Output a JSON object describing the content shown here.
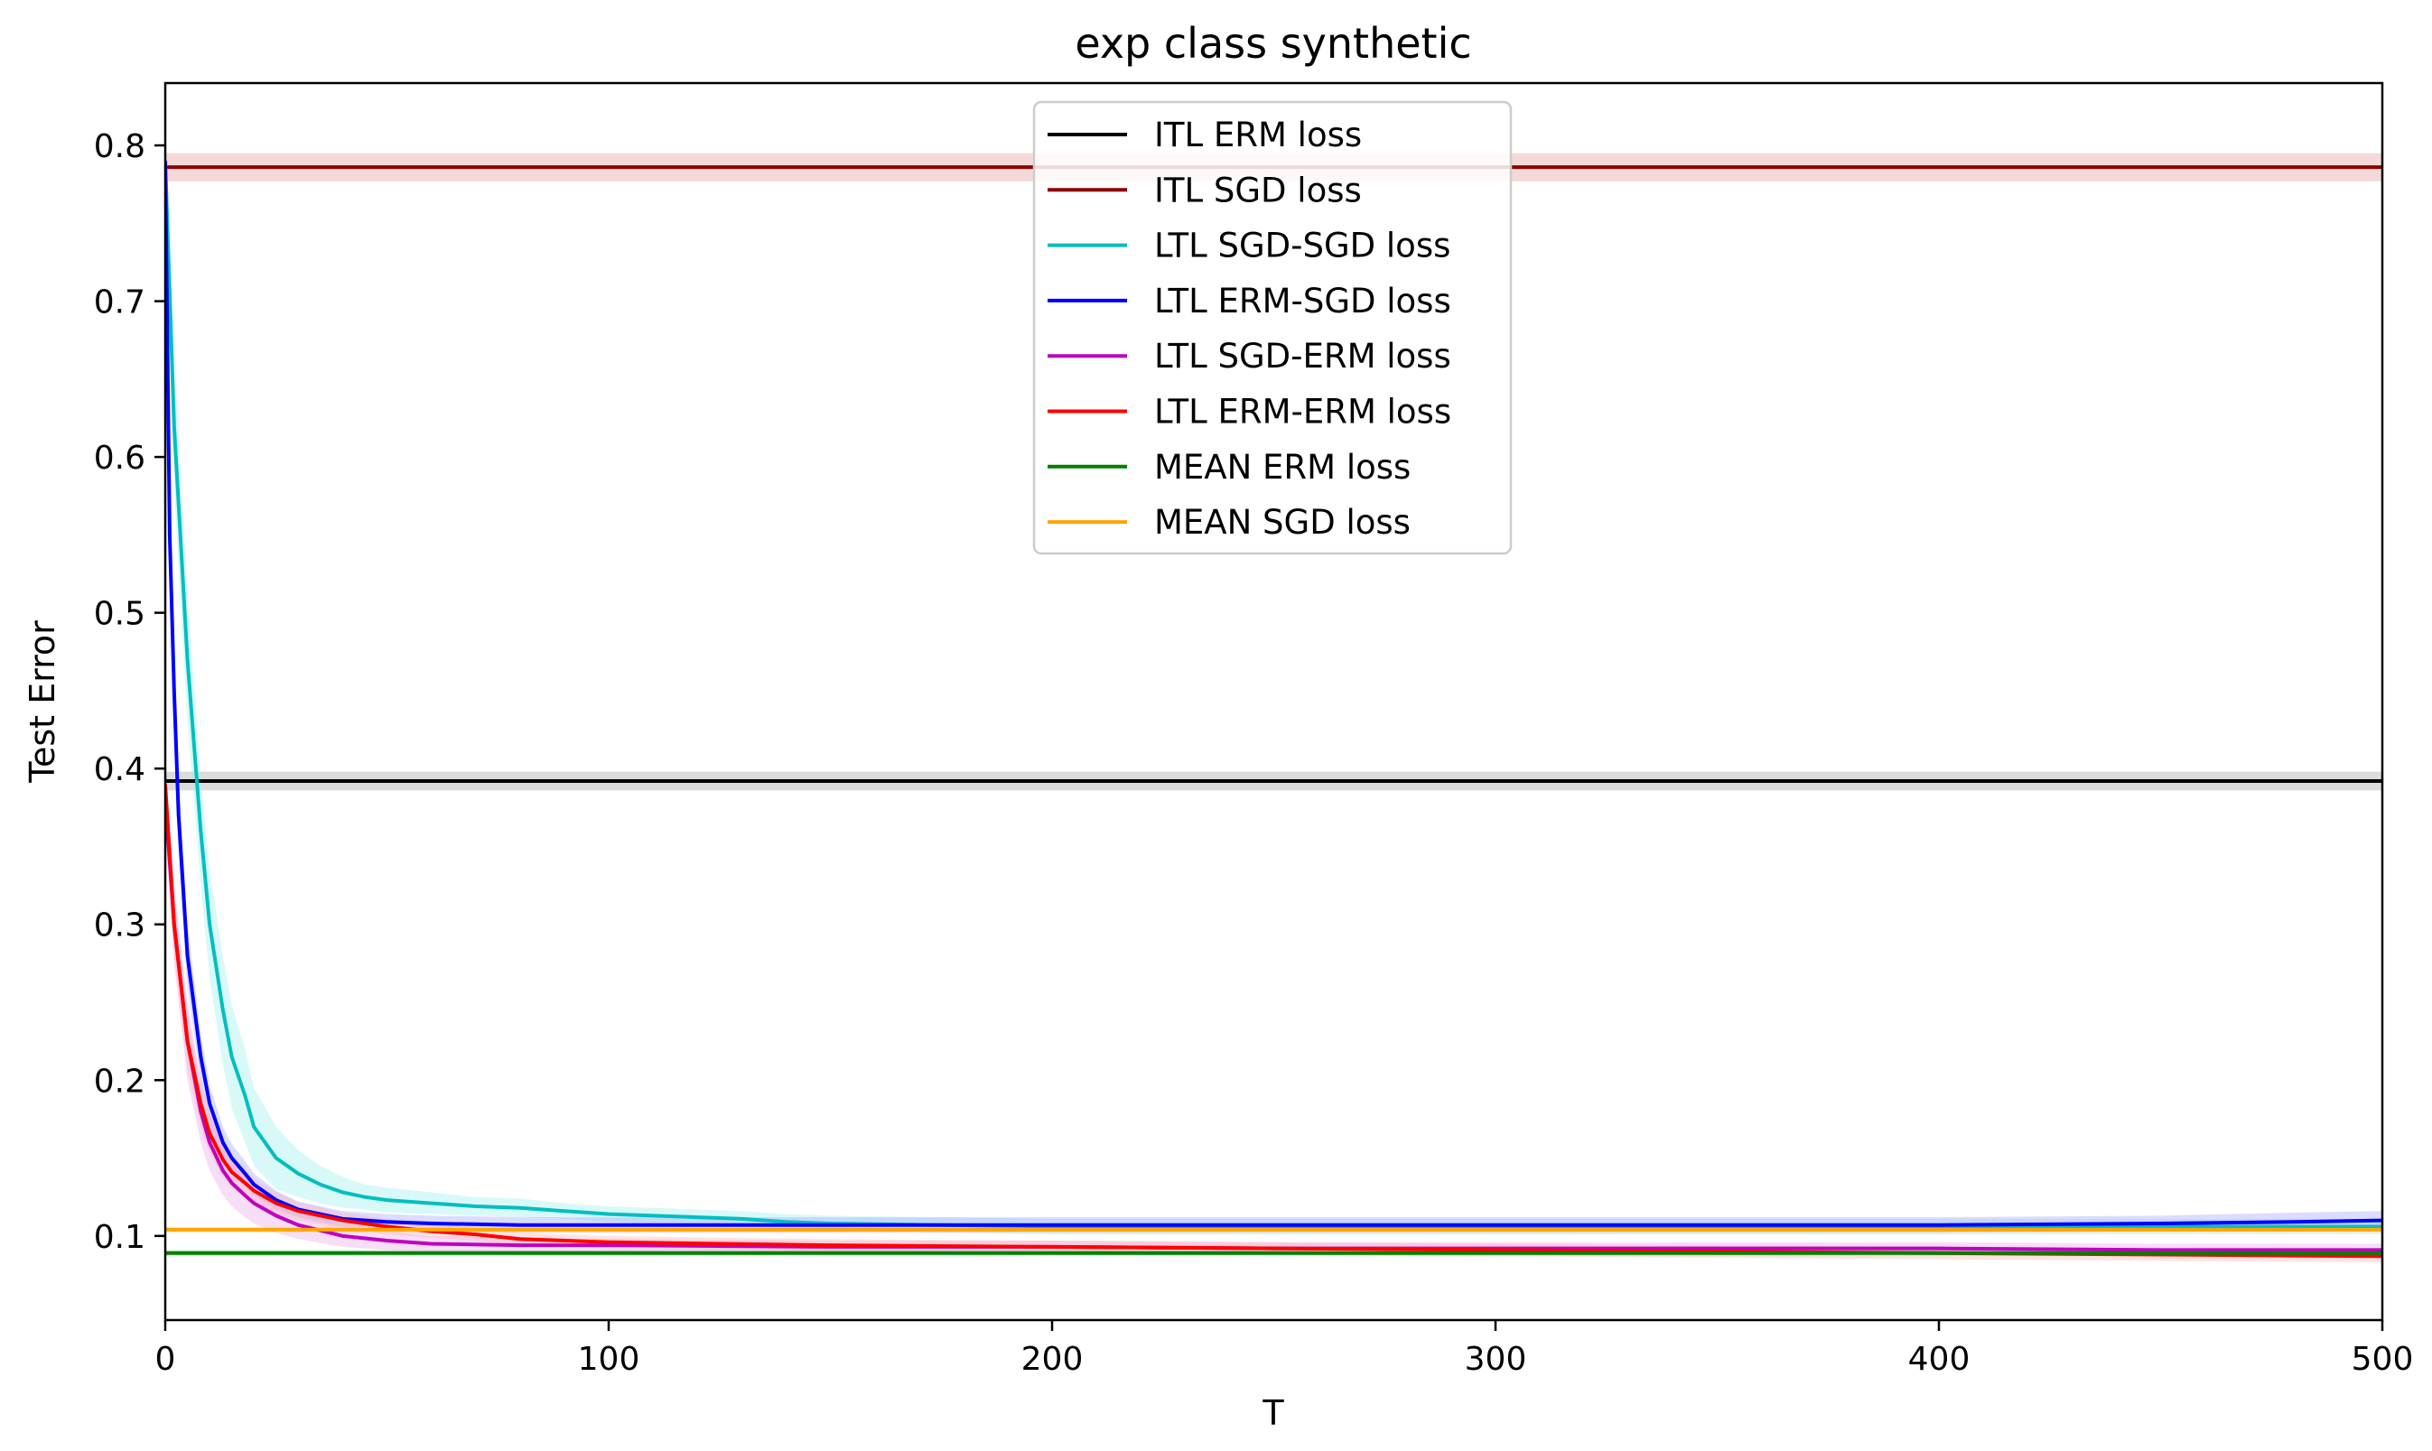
{
  "chart_data": {
    "type": "line",
    "title": "exp class synthetic",
    "xlabel": "T",
    "ylabel": "Test Error",
    "xlim": [
      0,
      500
    ],
    "ylim": [
      0.046,
      0.84
    ],
    "xticks": [
      0,
      100,
      200,
      300,
      400,
      500
    ],
    "xtick_labels": [
      "0",
      "100",
      "200",
      "300",
      "400",
      "500"
    ],
    "yticks": [
      0.1,
      0.2,
      0.3,
      0.4,
      0.5,
      0.6,
      0.7,
      0.8
    ],
    "ytick_labels": [
      "0.1",
      "0.2",
      "0.3",
      "0.4",
      "0.5",
      "0.6",
      "0.7",
      "0.8"
    ],
    "grid": false,
    "legend_position": "top-center",
    "series": [
      {
        "name": "ITL ERM loss",
        "color": "#000000",
        "band_color": "#bfbfbf",
        "band_opacity": 0.55,
        "x": [
          0,
          500
        ],
        "y": [
          0.392,
          0.392
        ],
        "band": [
          0.006,
          0.006
        ]
      },
      {
        "name": "ITL SGD loss",
        "color": "#8b0000",
        "band_color": "#e8a8a8",
        "band_opacity": 0.45,
        "x": [
          0,
          500
        ],
        "y": [
          0.786,
          0.786
        ],
        "band": [
          0.009,
          0.009
        ]
      },
      {
        "name": "LTL SGD-SGD loss",
        "color": "#00bfbf",
        "band_color": "#9ff0f0",
        "band_opacity": 0.4,
        "x": [
          0,
          2,
          5,
          8,
          10,
          13,
          15,
          18,
          20,
          25,
          30,
          35,
          40,
          45,
          50,
          60,
          70,
          80,
          90,
          100,
          110,
          120,
          130,
          140,
          150,
          175,
          200,
          250,
          300,
          350,
          400,
          450,
          500
        ],
        "y": [
          0.79,
          0.62,
          0.47,
          0.36,
          0.3,
          0.245,
          0.215,
          0.19,
          0.17,
          0.15,
          0.14,
          0.133,
          0.128,
          0.125,
          0.123,
          0.121,
          0.119,
          0.118,
          0.116,
          0.114,
          0.113,
          0.112,
          0.111,
          0.109,
          0.108,
          0.107,
          0.106,
          0.106,
          0.106,
          0.106,
          0.106,
          0.106,
          0.106
        ],
        "band": [
          0.03,
          0.04,
          0.04,
          0.035,
          0.035,
          0.035,
          0.033,
          0.03,
          0.025,
          0.02,
          0.015,
          0.012,
          0.01,
          0.008,
          0.008,
          0.007,
          0.006,
          0.006,
          0.005,
          0.005,
          0.005,
          0.005,
          0.005,
          0.005,
          0.005,
          0.005,
          0.005,
          0.005,
          0.005,
          0.005,
          0.005,
          0.005,
          0.005
        ]
      },
      {
        "name": "LTL ERM-SGD loss",
        "color": "#0000ff",
        "band_color": "#a8a8ff",
        "band_opacity": 0.4,
        "x": [
          0,
          1,
          2,
          3,
          5,
          8,
          10,
          13,
          15,
          18,
          20,
          25,
          30,
          40,
          50,
          60,
          80,
          100,
          150,
          200,
          250,
          300,
          350,
          400,
          450,
          480,
          500
        ],
        "y": [
          0.79,
          0.55,
          0.45,
          0.37,
          0.28,
          0.215,
          0.185,
          0.16,
          0.15,
          0.14,
          0.133,
          0.123,
          0.117,
          0.111,
          0.109,
          0.108,
          0.107,
          0.107,
          0.107,
          0.107,
          0.107,
          0.107,
          0.107,
          0.107,
          0.108,
          0.109,
          0.11
        ],
        "band": [
          0.02,
          0.03,
          0.03,
          0.025,
          0.02,
          0.015,
          0.012,
          0.01,
          0.009,
          0.008,
          0.007,
          0.006,
          0.005,
          0.005,
          0.005,
          0.005,
          0.005,
          0.005,
          0.005,
          0.005,
          0.005,
          0.005,
          0.005,
          0.005,
          0.005,
          0.006,
          0.006
        ]
      },
      {
        "name": "LTL SGD-ERM loss",
        "color": "#c000c0",
        "band_color": "#e8a0e8",
        "band_opacity": 0.35,
        "x": [
          0,
          2,
          5,
          8,
          10,
          13,
          15,
          18,
          20,
          25,
          30,
          40,
          50,
          60,
          80,
          100,
          150,
          200,
          250,
          300,
          350,
          400,
          450,
          500
        ],
        "y": [
          0.38,
          0.3,
          0.225,
          0.18,
          0.16,
          0.142,
          0.134,
          0.126,
          0.121,
          0.113,
          0.107,
          0.1,
          0.097,
          0.095,
          0.094,
          0.094,
          0.093,
          0.093,
          0.092,
          0.092,
          0.092,
          0.092,
          0.091,
          0.091
        ],
        "band": [
          0.02,
          0.025,
          0.025,
          0.02,
          0.018,
          0.016,
          0.015,
          0.014,
          0.013,
          0.011,
          0.009,
          0.007,
          0.006,
          0.005,
          0.005,
          0.004,
          0.004,
          0.004,
          0.004,
          0.004,
          0.004,
          0.004,
          0.004,
          0.004
        ]
      },
      {
        "name": "LTL ERM-ERM loss",
        "color": "#ff0000",
        "band_color": "#ffb0b0",
        "band_opacity": 0.35,
        "x": [
          0,
          2,
          5,
          8,
          10,
          13,
          15,
          18,
          20,
          25,
          30,
          40,
          50,
          60,
          70,
          80,
          90,
          100,
          150,
          200,
          250,
          300,
          350,
          400,
          450,
          500
        ],
        "y": [
          0.39,
          0.3,
          0.225,
          0.185,
          0.166,
          0.149,
          0.141,
          0.134,
          0.129,
          0.121,
          0.116,
          0.11,
          0.106,
          0.103,
          0.101,
          0.098,
          0.097,
          0.096,
          0.094,
          0.093,
          0.092,
          0.091,
          0.09,
          0.089,
          0.088,
          0.087
        ],
        "band": [
          0.015,
          0.02,
          0.018,
          0.015,
          0.013,
          0.011,
          0.01,
          0.009,
          0.008,
          0.007,
          0.006,
          0.005,
          0.005,
          0.004,
          0.004,
          0.004,
          0.004,
          0.004,
          0.004,
          0.004,
          0.004,
          0.004,
          0.004,
          0.004,
          0.004,
          0.004
        ]
      },
      {
        "name": "MEAN ERM loss",
        "color": "#008000",
        "band_color": "#a0d8a0",
        "band_opacity": 0.4,
        "x": [
          0,
          500
        ],
        "y": [
          0.089,
          0.089
        ],
        "band": [
          0.002,
          0.002
        ]
      },
      {
        "name": "MEAN SGD loss",
        "color": "#ffa500",
        "band_color": "#ffd8a0",
        "band_opacity": 0.4,
        "x": [
          0,
          500
        ],
        "y": [
          0.104,
          0.104
        ],
        "band": [
          0.002,
          0.002
        ]
      }
    ]
  }
}
